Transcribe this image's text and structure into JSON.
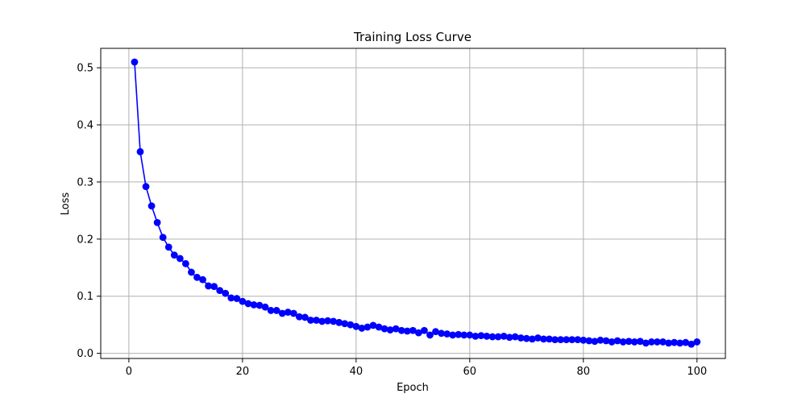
{
  "chart_data": {
    "type": "line",
    "title": "Training Loss Curve",
    "xlabel": "Epoch",
    "ylabel": "Loss",
    "xlim": [
      -4.95,
      105.0
    ],
    "ylim": [
      -0.009,
      0.534
    ],
    "xticks": [
      0,
      20,
      40,
      60,
      80,
      100
    ],
    "yticks": [
      0.0,
      0.1,
      0.2,
      0.3,
      0.4,
      0.5
    ],
    "xtick_labels": [
      "0",
      "20",
      "40",
      "60",
      "80",
      "100"
    ],
    "ytick_labels": [
      "0.0",
      "0.1",
      "0.2",
      "0.3",
      "0.4",
      "0.5"
    ],
    "grid": true,
    "marker": "circle",
    "colors": {
      "series": "#0000ff",
      "grid": "#b0b0b0",
      "axes": "#000000"
    },
    "series": [
      {
        "x": [
          1,
          2,
          3,
          4,
          5,
          6,
          7,
          8,
          9,
          10,
          11,
          12,
          13,
          14,
          15,
          16,
          17,
          18,
          19,
          20,
          21,
          22,
          23,
          24,
          25,
          26,
          27,
          28,
          29,
          30,
          31,
          32,
          33,
          34,
          35,
          36,
          37,
          38,
          39,
          40,
          41,
          42,
          43,
          44,
          45,
          46,
          47,
          48,
          49,
          50,
          51,
          52,
          53,
          54,
          55,
          56,
          57,
          58,
          59,
          60,
          61,
          62,
          63,
          64,
          65,
          66,
          67,
          68,
          69,
          70,
          71,
          72,
          73,
          74,
          75,
          76,
          77,
          78,
          79,
          80,
          81,
          82,
          83,
          84,
          85,
          86,
          87,
          88,
          89,
          90,
          91,
          92,
          93,
          94,
          95,
          96,
          97,
          98,
          99,
          100
        ],
        "values": [
          0.51,
          0.353,
          0.292,
          0.258,
          0.229,
          0.203,
          0.186,
          0.172,
          0.166,
          0.157,
          0.142,
          0.133,
          0.129,
          0.118,
          0.117,
          0.11,
          0.105,
          0.097,
          0.096,
          0.091,
          0.087,
          0.085,
          0.084,
          0.081,
          0.075,
          0.075,
          0.07,
          0.072,
          0.07,
          0.064,
          0.063,
          0.058,
          0.058,
          0.056,
          0.057,
          0.056,
          0.054,
          0.052,
          0.05,
          0.047,
          0.044,
          0.046,
          0.049,
          0.046,
          0.043,
          0.041,
          0.043,
          0.04,
          0.039,
          0.04,
          0.036,
          0.04,
          0.032,
          0.038,
          0.035,
          0.034,
          0.032,
          0.033,
          0.032,
          0.032,
          0.03,
          0.031,
          0.03,
          0.029,
          0.029,
          0.03,
          0.028,
          0.029,
          0.027,
          0.026,
          0.025,
          0.027,
          0.025,
          0.025,
          0.024,
          0.024,
          0.024,
          0.024,
          0.024,
          0.023,
          0.022,
          0.021,
          0.023,
          0.022,
          0.02,
          0.022,
          0.02,
          0.021,
          0.02,
          0.021,
          0.018,
          0.02,
          0.02,
          0.02,
          0.018,
          0.019,
          0.018,
          0.019,
          0.016,
          0.02
        ]
      }
    ]
  }
}
